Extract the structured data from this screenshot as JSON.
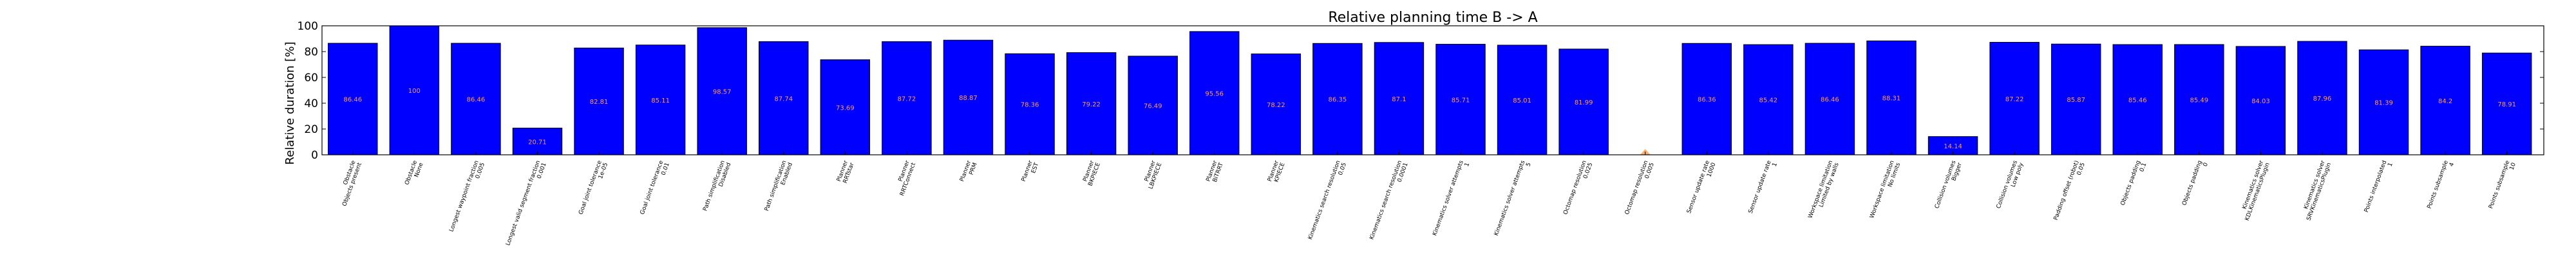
{
  "chart_data": {
    "type": "bar",
    "title": "Relative planning time B -> A",
    "ylabel": "Relative duration [%]",
    "ylim": [
      0,
      100
    ],
    "yticks": [
      0,
      20,
      40,
      60,
      80,
      100
    ],
    "bar_color": "#0000ff",
    "value_label_color": "#ff9d5c",
    "categories": [
      [
        "Obstacle",
        "Objects present"
      ],
      [
        "Obstacle",
        "None"
      ],
      [
        "Longest waypoint fraction",
        "0.005"
      ],
      [
        "Longest valid segment fraction",
        "0.001"
      ],
      [
        "Goal joint tolerance",
        "1e-05"
      ],
      [
        "Goal joint tolerance",
        "0.01"
      ],
      [
        "Path simplification",
        "Disabled"
      ],
      [
        "Path simplification",
        "Enabled"
      ],
      [
        "Planner",
        "RRTstar"
      ],
      [
        "Planner",
        "RRTConnect"
      ],
      [
        "Planner",
        "PRM"
      ],
      [
        "Planner",
        "EST"
      ],
      [
        "Planner",
        "BKPIECE"
      ],
      [
        "Planner",
        "LBKPIECE"
      ],
      [
        "Planner",
        "BiTRRT"
      ],
      [
        "Planner",
        "KPIECE"
      ],
      [
        "Kinematics search resolution",
        "0.05"
      ],
      [
        "Kinematics search resolution",
        "0.0001"
      ],
      [
        "Kinematics solver attempts",
        "1"
      ],
      [
        "Kinematics solver attempts",
        "5"
      ],
      [
        "Octomap resolution",
        "0.025"
      ],
      [
        "Octomap resolution",
        "0.005"
      ],
      [
        "Sensor update rate",
        "1000"
      ],
      [
        "Sensor update rate",
        "1"
      ],
      [
        "Workspace limitation",
        "Limited by walls"
      ],
      [
        "Workspace limitation",
        "No limits"
      ],
      [
        "Collision volumes",
        "Bigger"
      ],
      [
        "Collision volumes",
        "Low poly"
      ],
      [
        "Padding offset (robot)",
        "0.05"
      ],
      [
        "Objects padding",
        "0.1"
      ],
      [
        "Objects padding",
        "0"
      ],
      [
        "Kinematics solver",
        "KDLKinematicsPlugin"
      ],
      [
        "Kinematics solver",
        "SRVKinematicsPlugin"
      ],
      [
        "Points interpolated",
        "1"
      ],
      [
        "Points subsample",
        "4"
      ],
      [
        "Points subsample",
        "10"
      ]
    ],
    "values": [
      86.46,
      100.0,
      86.46,
      20.71,
      82.81,
      85.11,
      98.57,
      87.74,
      73.69,
      87.72,
      88.87,
      78.36,
      79.22,
      76.49,
      95.56,
      78.22,
      86.35,
      87.1,
      85.71,
      85.01,
      81.99,
      null,
      86.36,
      85.42,
      86.46,
      88.31,
      14.14,
      87.22,
      85.87,
      85.46,
      85.49,
      84.03,
      87.96,
      81.39,
      84.2,
      78.91
    ]
  }
}
